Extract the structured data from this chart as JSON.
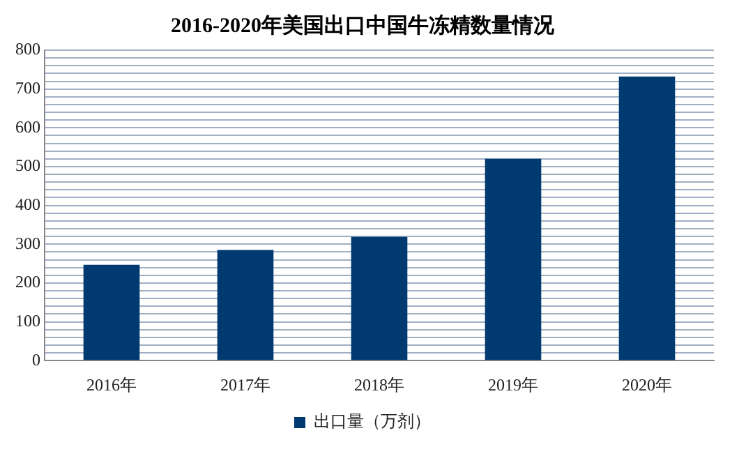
{
  "chart_data": {
    "type": "bar",
    "title": "2016-2020年美国出口中国牛冻精数量情况",
    "categories": [
      "2016年",
      "2017年",
      "2018年",
      "2019年",
      "2020年"
    ],
    "series": [
      {
        "name": "出口量（万剂）",
        "color": "#003a70",
        "values": [
          247,
          285,
          319,
          520,
          732
        ]
      }
    ],
    "ylim": [
      0,
      800
    ],
    "yticks": [
      0,
      {
        "value": 20,
        "label": null
      },
      {
        "value": 40,
        "label": null
      },
      {
        "value": 60,
        "label": null
      },
      {
        "value": 80,
        "label": null
      },
      100,
      {
        "value": 120,
        "label": null
      },
      {
        "value": 140,
        "label": null
      },
      {
        "value": 160,
        "label": null
      },
      {
        "value": 180,
        "label": null
      },
      200,
      {
        "value": 220,
        "label": null
      },
      {
        "value": 240,
        "label": null
      },
      {
        "value": 260,
        "label": null
      },
      {
        "value": 280,
        "label": null
      },
      300,
      {
        "value": 320,
        "label": null
      },
      {
        "value": 340,
        "label": null
      },
      {
        "value": 360,
        "label": null
      },
      {
        "value": 380,
        "label": null
      },
      400,
      {
        "value": 420,
        "label": null
      },
      {
        "value": 440,
        "label": null
      },
      {
        "value": 460,
        "label": null
      },
      {
        "value": 480,
        "label": null
      },
      500,
      {
        "value": 520,
        "label": null
      },
      {
        "value": 540,
        "label": null
      },
      {
        "value": 560,
        "label": null
      },
      {
        "value": 580,
        "label": null
      },
      600,
      {
        "value": 620,
        "label": null
      },
      {
        "value": 640,
        "label": null
      },
      {
        "value": 660,
        "label": null
      },
      {
        "value": 680,
        "label": null
      },
      700,
      {
        "value": 720,
        "label": null
      },
      {
        "value": 740,
        "label": null
      },
      {
        "value": 760,
        "label": null
      },
      {
        "value": 780,
        "label": null
      },
      800
    ],
    "grid": "y",
    "legend": "bottom"
  }
}
